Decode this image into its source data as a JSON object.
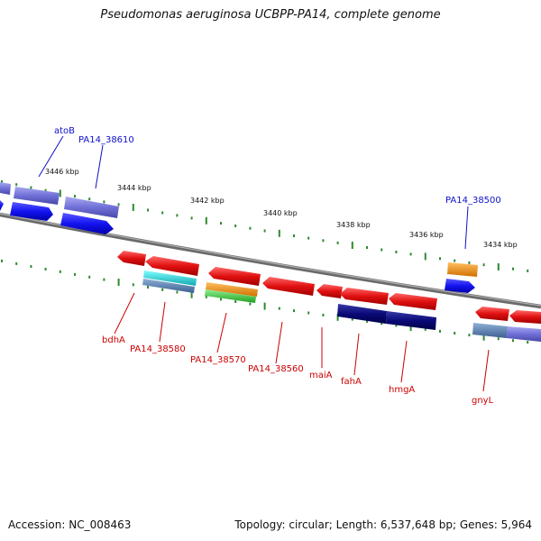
{
  "title": "Pseudomonas aeruginosa UCBPP-PA14, complete genome",
  "footer": {
    "accession": "Accession: NC_008463",
    "summary": "Topology: circular; Length: 6,537,648 bp; Genes: 5,964"
  },
  "ticks": [
    {
      "label": "3446 kbp"
    },
    {
      "label": "3444 kbp"
    },
    {
      "label": "3442 kbp"
    },
    {
      "label": "3440 kbp"
    },
    {
      "label": "3438 kbp"
    },
    {
      "label": "3436 kbp"
    },
    {
      "label": "3434 kbp"
    }
  ],
  "forward_labels": [
    {
      "name": "atoB",
      "strand": "forward"
    },
    {
      "name": "PA14_38610",
      "strand": "forward"
    },
    {
      "name": "PA14_38500",
      "strand": "forward"
    }
  ],
  "reverse_labels": [
    {
      "name": "bdhA",
      "strand": "reverse"
    },
    {
      "name": "PA14_38580",
      "strand": "reverse"
    },
    {
      "name": "PA14_38570",
      "strand": "reverse"
    },
    {
      "name": "PA14_38560",
      "strand": "reverse"
    },
    {
      "name": "maiA",
      "strand": "reverse"
    },
    {
      "name": "fahA",
      "strand": "reverse"
    },
    {
      "name": "hmgA",
      "strand": "reverse"
    },
    {
      "name": "gnyL",
      "strand": "reverse"
    }
  ],
  "colors": {
    "backbone": "#808080",
    "tick": "#2e8b2e",
    "gene_forward": "#1414f0",
    "gene_forward_light": "#7070d8",
    "gene_reverse": "#e01010",
    "gene_navy": "#0a0a78",
    "gene_cyan": "#20c8c8",
    "gene_orange": "#f09010",
    "gene_green": "#40c040",
    "gene_steel": "#5a82b4",
    "label_forward": "#1010c8",
    "label_reverse": "#cc0000"
  }
}
